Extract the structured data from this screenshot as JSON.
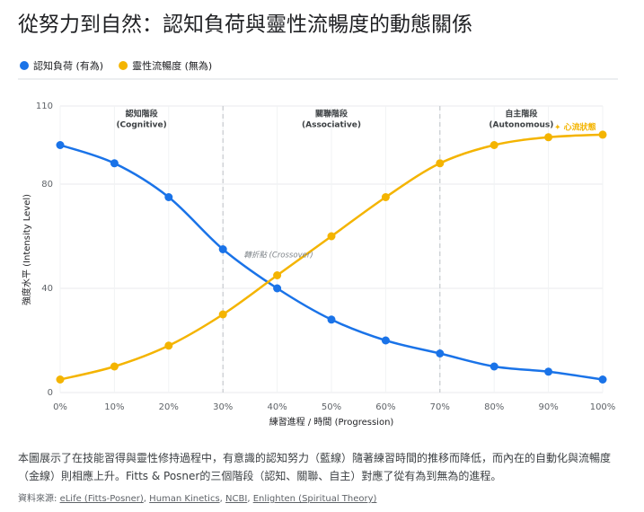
{
  "chart_data": {
    "type": "line",
    "title": "從努力到自然：認知負荷與靈性流暢度的動態關係",
    "categories": [
      "0%",
      "10%",
      "20%",
      "30%",
      "40%",
      "50%",
      "60%",
      "70%",
      "80%",
      "90%",
      "100%"
    ],
    "series": [
      {
        "name": "認知負荷 (有為)",
        "color": "#1a73e8",
        "values": [
          95,
          88,
          75,
          55,
          40,
          28,
          20,
          15,
          10,
          8,
          5
        ]
      },
      {
        "name": "靈性流暢度 (無為)",
        "color": "#f4b400",
        "values": [
          5,
          10,
          18,
          30,
          45,
          60,
          75,
          88,
          95,
          98,
          99
        ]
      }
    ],
    "ylim": [
      0,
      110
    ],
    "yticks": [
      0,
      40,
      80,
      110
    ],
    "grid": true,
    "xlabel": "練習進程 / 時間 (Progression)",
    "ylabel": "強度水平 (Intensity Level)",
    "phases": [
      {
        "name": "認知階段",
        "subtitle": "(Cognitive)"
      },
      {
        "name": "關聯階段",
        "subtitle": "(Associative)"
      },
      {
        "name": "自主階段",
        "subtitle": "(Autonomous)"
      }
    ],
    "annotations": [
      "轉折點 (Crossover)",
      "✦ 心流狀態"
    ]
  },
  "description": "本圖展示了在技能習得與靈性修持過程中，有意識的認知努力（藍線）隨著練習時間的推移而降低，而內在的自動化與流暢度（金線）則相應上升。Fitts & Posner的三個階段（認知、關聯、自主）對應了從有為到無為的進程。",
  "sources_label": "資料來源:",
  "sources": [
    "eLife (Fitts-Posner)",
    "Human Kinetics",
    "NCBI",
    "Enlighten (Spiritual Theory)"
  ],
  "separator": ","
}
